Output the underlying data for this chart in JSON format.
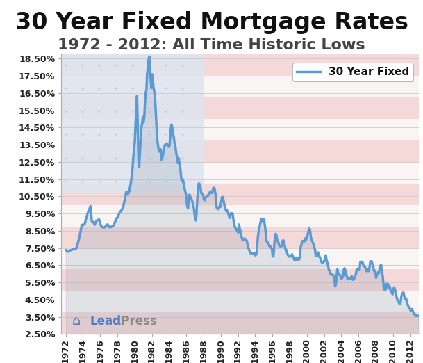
{
  "title": "30 Year Fixed Mortgage Rates",
  "subtitle": "1972 - 2012: All Time Historic Lows",
  "legend_label": "30 Year Fixed",
  "ylim": [
    2.5,
    18.75
  ],
  "yticks": [
    2.5,
    3.5,
    4.5,
    5.5,
    6.5,
    7.5,
    8.5,
    9.5,
    10.5,
    11.5,
    12.5,
    13.5,
    14.5,
    15.5,
    16.5,
    17.5,
    18.5
  ],
  "ylabel_ticks": [
    "2.50%",
    "3.50%",
    "4.50%",
    "5.50%",
    "6.50%",
    "7.50%",
    "8.50%",
    "9.50%",
    "10.50%",
    "11.50%",
    "12.50%",
    "13.50%",
    "14.50%",
    "15.50%",
    "16.50%",
    "17.50%",
    "18.50%"
  ],
  "xtick_years": [
    1972,
    1974,
    1976,
    1978,
    1980,
    1982,
    1984,
    1986,
    1988,
    1990,
    1992,
    1994,
    1996,
    1998,
    2000,
    2002,
    2004,
    2006,
    2008,
    2010,
    2012
  ],
  "xlim": [
    1971.5,
    2013.0
  ],
  "line_color": "#5b9bd5",
  "line_width": 2.5,
  "bg_color": "#ffffff",
  "plot_bg_color": "#ffffff",
  "grid_color": "#cccccc",
  "title_fontsize": 24,
  "subtitle_fontsize": 16,
  "tick_fontsize": 9,
  "stripe_red": "#f5d8d8",
  "stripe_white": "#faf5f5",
  "canton_color": "#dde4f0",
  "star_color": "#c5cfe0",
  "detailed_rates": [
    [
      1972.04,
      7.38
    ],
    [
      1972.21,
      7.28
    ],
    [
      1972.38,
      7.3
    ],
    [
      1972.54,
      7.37
    ],
    [
      1972.71,
      7.38
    ],
    [
      1972.88,
      7.44
    ],
    [
      1973.04,
      7.44
    ],
    [
      1973.21,
      7.46
    ],
    [
      1973.38,
      7.7
    ],
    [
      1973.54,
      8.02
    ],
    [
      1973.71,
      8.4
    ],
    [
      1973.88,
      8.84
    ],
    [
      1974.04,
      8.84
    ],
    [
      1974.21,
      8.9
    ],
    [
      1974.38,
      9.2
    ],
    [
      1974.54,
      9.5
    ],
    [
      1974.71,
      9.7
    ],
    [
      1974.88,
      9.93
    ],
    [
      1975.04,
      9.05
    ],
    [
      1975.21,
      9.0
    ],
    [
      1975.38,
      8.85
    ],
    [
      1975.54,
      9.05
    ],
    [
      1975.71,
      9.12
    ],
    [
      1975.88,
      9.16
    ],
    [
      1976.04,
      8.87
    ],
    [
      1976.21,
      8.72
    ],
    [
      1976.38,
      8.68
    ],
    [
      1976.54,
      8.7
    ],
    [
      1976.71,
      8.8
    ],
    [
      1976.88,
      8.87
    ],
    [
      1977.04,
      8.72
    ],
    [
      1977.21,
      8.7
    ],
    [
      1977.38,
      8.75
    ],
    [
      1977.54,
      8.8
    ],
    [
      1977.71,
      8.98
    ],
    [
      1977.88,
      9.18
    ],
    [
      1978.04,
      9.3
    ],
    [
      1978.21,
      9.5
    ],
    [
      1978.38,
      9.64
    ],
    [
      1978.54,
      9.73
    ],
    [
      1978.71,
      9.95
    ],
    [
      1978.88,
      10.35
    ],
    [
      1979.04,
      10.78
    ],
    [
      1979.21,
      10.6
    ],
    [
      1979.38,
      10.8
    ],
    [
      1979.54,
      11.2
    ],
    [
      1979.71,
      11.8
    ],
    [
      1979.88,
      12.9
    ],
    [
      1980.04,
      13.74
    ],
    [
      1980.13,
      14.88
    ],
    [
      1980.21,
      15.26
    ],
    [
      1980.29,
      16.35
    ],
    [
      1980.38,
      14.48
    ],
    [
      1980.46,
      12.66
    ],
    [
      1980.54,
      12.2
    ],
    [
      1980.63,
      13.1
    ],
    [
      1980.71,
      13.74
    ],
    [
      1980.79,
      14.5
    ],
    [
      1980.88,
      14.75
    ],
    [
      1980.96,
      15.12
    ],
    [
      1981.04,
      14.8
    ],
    [
      1981.13,
      15.1
    ],
    [
      1981.21,
      15.9
    ],
    [
      1981.29,
      16.52
    ],
    [
      1981.38,
      16.7
    ],
    [
      1981.46,
      17.58
    ],
    [
      1981.54,
      18.0
    ],
    [
      1981.63,
      18.45
    ],
    [
      1981.71,
      18.63
    ],
    [
      1981.79,
      17.8
    ],
    [
      1981.88,
      17.2
    ],
    [
      1981.96,
      16.8
    ],
    [
      1982.04,
      17.6
    ],
    [
      1982.13,
      17.2
    ],
    [
      1982.21,
      16.8
    ],
    [
      1982.29,
      16.6
    ],
    [
      1982.38,
      16.2
    ],
    [
      1982.46,
      15.46
    ],
    [
      1982.54,
      14.8
    ],
    [
      1982.63,
      13.84
    ],
    [
      1982.71,
      13.5
    ],
    [
      1982.79,
      13.24
    ],
    [
      1982.88,
      13.1
    ],
    [
      1982.96,
      13.24
    ],
    [
      1983.04,
      13.24
    ],
    [
      1983.13,
      12.63
    ],
    [
      1983.21,
      12.7
    ],
    [
      1983.29,
      12.9
    ],
    [
      1983.38,
      13.2
    ],
    [
      1983.46,
      13.4
    ],
    [
      1983.54,
      13.49
    ],
    [
      1983.63,
      13.51
    ],
    [
      1983.71,
      13.58
    ],
    [
      1983.79,
      13.5
    ],
    [
      1983.88,
      13.42
    ],
    [
      1983.96,
      13.38
    ],
    [
      1984.04,
      13.38
    ],
    [
      1984.13,
      13.88
    ],
    [
      1984.21,
      14.47
    ],
    [
      1984.29,
      14.67
    ],
    [
      1984.38,
      14.5
    ],
    [
      1984.46,
      14.14
    ],
    [
      1984.54,
      14.0
    ],
    [
      1984.63,
      13.64
    ],
    [
      1984.71,
      13.5
    ],
    [
      1984.79,
      13.2
    ],
    [
      1984.88,
      12.9
    ],
    [
      1984.96,
      12.7
    ],
    [
      1985.04,
      12.43
    ],
    [
      1985.13,
      12.72
    ],
    [
      1985.21,
      12.4
    ],
    [
      1985.29,
      12.22
    ],
    [
      1985.38,
      11.8
    ],
    [
      1985.46,
      11.4
    ],
    [
      1985.54,
      11.5
    ],
    [
      1985.63,
      11.45
    ],
    [
      1985.71,
      11.2
    ],
    [
      1985.79,
      10.98
    ],
    [
      1985.88,
      10.8
    ],
    [
      1985.96,
      10.65
    ],
    [
      1986.04,
      10.19
    ],
    [
      1986.13,
      9.9
    ],
    [
      1986.21,
      9.8
    ],
    [
      1986.29,
      10.4
    ],
    [
      1986.38,
      10.6
    ],
    [
      1986.46,
      10.5
    ],
    [
      1986.54,
      10.4
    ],
    [
      1986.63,
      10.32
    ],
    [
      1986.71,
      10.2
    ],
    [
      1986.79,
      10.1
    ],
    [
      1986.88,
      9.83
    ],
    [
      1986.96,
      9.5
    ],
    [
      1987.04,
      9.2
    ],
    [
      1987.13,
      9.1
    ],
    [
      1987.21,
      9.69
    ],
    [
      1987.29,
      10.4
    ],
    [
      1987.38,
      10.8
    ],
    [
      1987.46,
      11.26
    ],
    [
      1987.54,
      11.06
    ],
    [
      1987.63,
      11.2
    ],
    [
      1987.71,
      10.8
    ],
    [
      1987.79,
      10.65
    ],
    [
      1987.88,
      10.65
    ],
    [
      1987.96,
      10.6
    ],
    [
      1988.04,
      10.34
    ],
    [
      1988.13,
      10.27
    ],
    [
      1988.21,
      10.4
    ],
    [
      1988.29,
      10.46
    ],
    [
      1988.38,
      10.48
    ],
    [
      1988.46,
      10.48
    ],
    [
      1988.54,
      10.57
    ],
    [
      1988.63,
      10.65
    ],
    [
      1988.71,
      10.7
    ],
    [
      1988.79,
      10.8
    ],
    [
      1988.88,
      10.7
    ],
    [
      1988.96,
      10.7
    ],
    [
      1989.04,
      10.72
    ],
    [
      1989.13,
      10.97
    ],
    [
      1989.21,
      11.0
    ],
    [
      1989.29,
      10.93
    ],
    [
      1989.38,
      10.7
    ],
    [
      1989.46,
      10.24
    ],
    [
      1989.54,
      9.84
    ],
    [
      1989.63,
      9.8
    ],
    [
      1989.71,
      9.75
    ],
    [
      1989.79,
      9.88
    ],
    [
      1989.88,
      9.9
    ],
    [
      1989.96,
      9.88
    ],
    [
      1990.04,
      10.13
    ],
    [
      1990.13,
      10.38
    ],
    [
      1990.21,
      10.47
    ],
    [
      1990.29,
      10.38
    ],
    [
      1990.38,
      10.13
    ],
    [
      1990.46,
      9.94
    ],
    [
      1990.54,
      9.8
    ],
    [
      1990.63,
      9.65
    ],
    [
      1990.71,
      9.7
    ],
    [
      1990.79,
      9.65
    ],
    [
      1990.88,
      9.5
    ],
    [
      1990.96,
      9.38
    ],
    [
      1991.04,
      9.25
    ],
    [
      1991.13,
      9.47
    ],
    [
      1991.21,
      9.52
    ],
    [
      1991.29,
      9.52
    ],
    [
      1991.38,
      9.5
    ],
    [
      1991.46,
      9.21
    ],
    [
      1991.54,
      8.96
    ],
    [
      1991.63,
      8.75
    ],
    [
      1991.71,
      8.63
    ],
    [
      1991.79,
      8.63
    ],
    [
      1991.88,
      8.5
    ],
    [
      1991.96,
      8.5
    ],
    [
      1992.04,
      8.39
    ],
    [
      1992.13,
      8.86
    ],
    [
      1992.21,
      8.62
    ],
    [
      1992.29,
      8.5
    ],
    [
      1992.38,
      8.2
    ],
    [
      1992.46,
      8.1
    ],
    [
      1992.54,
      7.96
    ],
    [
      1992.63,
      8.0
    ],
    [
      1992.71,
      8.0
    ],
    [
      1992.79,
      8.05
    ],
    [
      1992.88,
      7.96
    ],
    [
      1992.96,
      7.96
    ],
    [
      1993.04,
      7.91
    ],
    [
      1993.13,
      7.69
    ],
    [
      1993.21,
      7.5
    ],
    [
      1993.29,
      7.41
    ],
    [
      1993.38,
      7.3
    ],
    [
      1993.46,
      7.2
    ],
    [
      1993.54,
      7.22
    ],
    [
      1993.63,
      7.18
    ],
    [
      1993.71,
      7.2
    ],
    [
      1993.79,
      7.18
    ],
    [
      1993.88,
      7.17
    ],
    [
      1993.96,
      7.17
    ],
    [
      1994.04,
      7.06
    ],
    [
      1994.13,
      7.15
    ],
    [
      1994.21,
      7.37
    ],
    [
      1994.29,
      8.0
    ],
    [
      1994.38,
      8.38
    ],
    [
      1994.46,
      8.6
    ],
    [
      1994.54,
      8.8
    ],
    [
      1994.63,
      9.0
    ],
    [
      1994.71,
      9.2
    ],
    [
      1994.79,
      9.07
    ],
    [
      1994.88,
      9.1
    ],
    [
      1994.96,
      9.17
    ],
    [
      1995.04,
      9.15
    ],
    [
      1995.13,
      8.8
    ],
    [
      1995.21,
      8.49
    ],
    [
      1995.29,
      7.96
    ],
    [
      1995.38,
      7.85
    ],
    [
      1995.46,
      7.84
    ],
    [
      1995.54,
      7.78
    ],
    [
      1995.63,
      7.64
    ],
    [
      1995.71,
      7.57
    ],
    [
      1995.79,
      7.59
    ],
    [
      1995.88,
      7.48
    ],
    [
      1995.96,
      7.43
    ],
    [
      1996.04,
      7.03
    ],
    [
      1996.13,
      7.0
    ],
    [
      1996.21,
      7.62
    ],
    [
      1996.29,
      8.0
    ],
    [
      1996.38,
      8.32
    ],
    [
      1996.46,
      8.25
    ],
    [
      1996.54,
      8.0
    ],
    [
      1996.63,
      7.9
    ],
    [
      1996.71,
      7.8
    ],
    [
      1996.79,
      7.64
    ],
    [
      1996.88,
      7.6
    ],
    [
      1996.96,
      7.6
    ],
    [
      1997.04,
      7.6
    ],
    [
      1997.13,
      7.65
    ],
    [
      1997.21,
      7.93
    ],
    [
      1997.29,
      7.94
    ],
    [
      1997.38,
      7.8
    ],
    [
      1997.46,
      7.56
    ],
    [
      1997.54,
      7.4
    ],
    [
      1997.63,
      7.38
    ],
    [
      1997.71,
      7.22
    ],
    [
      1997.79,
      7.1
    ],
    [
      1997.88,
      7.05
    ],
    [
      1997.96,
      7.0
    ],
    [
      1998.04,
      6.99
    ],
    [
      1998.13,
      7.06
    ],
    [
      1998.21,
      7.06
    ],
    [
      1998.29,
      7.13
    ],
    [
      1998.38,
      7.0
    ],
    [
      1998.46,
      6.94
    ],
    [
      1998.54,
      6.81
    ],
    [
      1998.63,
      6.9
    ],
    [
      1998.71,
      6.8
    ],
    [
      1998.79,
      6.89
    ],
    [
      1998.88,
      6.89
    ],
    [
      1998.96,
      6.94
    ],
    [
      1999.04,
      6.79
    ],
    [
      1999.13,
      6.87
    ],
    [
      1999.21,
      7.0
    ],
    [
      1999.29,
      7.55
    ],
    [
      1999.38,
      7.7
    ],
    [
      1999.46,
      7.9
    ],
    [
      1999.54,
      7.88
    ],
    [
      1999.63,
      7.88
    ],
    [
      1999.71,
      7.88
    ],
    [
      1999.79,
      8.05
    ],
    [
      1999.88,
      7.95
    ],
    [
      1999.96,
      8.05
    ],
    [
      2000.04,
      8.21
    ],
    [
      2000.13,
      8.33
    ],
    [
      2000.21,
      8.52
    ],
    [
      2000.29,
      8.64
    ],
    [
      2000.38,
      8.52
    ],
    [
      2000.46,
      8.15
    ],
    [
      2000.54,
      8.03
    ],
    [
      2000.63,
      7.9
    ],
    [
      2000.71,
      7.78
    ],
    [
      2000.79,
      7.72
    ],
    [
      2000.88,
      7.52
    ],
    [
      2000.96,
      7.38
    ],
    [
      2001.04,
      7.03
    ],
    [
      2001.13,
      7.06
    ],
    [
      2001.21,
      7.06
    ],
    [
      2001.29,
      7.24
    ],
    [
      2001.38,
      7.14
    ],
    [
      2001.46,
      7.0
    ],
    [
      2001.54,
      6.94
    ],
    [
      2001.63,
      6.8
    ],
    [
      2001.71,
      6.68
    ],
    [
      2001.79,
      6.62
    ],
    [
      2001.88,
      6.68
    ],
    [
      2001.96,
      6.72
    ],
    [
      2002.04,
      6.72
    ],
    [
      2002.13,
      6.87
    ],
    [
      2002.21,
      7.07
    ],
    [
      2002.29,
      6.78
    ],
    [
      2002.38,
      6.65
    ],
    [
      2002.46,
      6.52
    ],
    [
      2002.54,
      6.26
    ],
    [
      2002.63,
      6.18
    ],
    [
      2002.71,
      6.05
    ],
    [
      2002.79,
      5.96
    ],
    [
      2002.88,
      5.96
    ],
    [
      2002.96,
      5.96
    ],
    [
      2003.04,
      5.92
    ],
    [
      2003.13,
      5.84
    ],
    [
      2003.21,
      5.71
    ],
    [
      2003.29,
      5.27
    ],
    [
      2003.38,
      5.4
    ],
    [
      2003.46,
      5.9
    ],
    [
      2003.54,
      6.26
    ],
    [
      2003.63,
      6.07
    ],
    [
      2003.71,
      5.96
    ],
    [
      2003.79,
      5.96
    ],
    [
      2003.88,
      5.9
    ],
    [
      2003.96,
      5.88
    ],
    [
      2004.04,
      5.71
    ],
    [
      2004.13,
      5.78
    ],
    [
      2004.21,
      5.84
    ],
    [
      2004.29,
      6.21
    ],
    [
      2004.38,
      6.32
    ],
    [
      2004.46,
      6.22
    ],
    [
      2004.54,
      5.98
    ],
    [
      2004.63,
      5.89
    ],
    [
      2004.71,
      5.73
    ],
    [
      2004.79,
      5.68
    ],
    [
      2004.88,
      5.72
    ],
    [
      2004.96,
      5.75
    ],
    [
      2005.04,
      5.71
    ],
    [
      2005.13,
      5.77
    ],
    [
      2005.21,
      5.86
    ],
    [
      2005.29,
      5.72
    ],
    [
      2005.38,
      5.65
    ],
    [
      2005.46,
      5.68
    ],
    [
      2005.54,
      5.77
    ],
    [
      2005.63,
      5.9
    ],
    [
      2005.71,
      6.0
    ],
    [
      2005.79,
      6.26
    ],
    [
      2005.88,
      6.27
    ],
    [
      2005.96,
      6.27
    ],
    [
      2006.04,
      6.22
    ],
    [
      2006.13,
      6.25
    ],
    [
      2006.21,
      6.67
    ],
    [
      2006.29,
      6.68
    ],
    [
      2006.38,
      6.7
    ],
    [
      2006.46,
      6.68
    ],
    [
      2006.54,
      6.55
    ],
    [
      2006.63,
      6.43
    ],
    [
      2006.71,
      6.4
    ],
    [
      2006.79,
      6.36
    ],
    [
      2006.88,
      6.24
    ],
    [
      2006.96,
      6.14
    ],
    [
      2007.04,
      6.22
    ],
    [
      2007.13,
      6.28
    ],
    [
      2007.21,
      6.16
    ],
    [
      2007.29,
      6.4
    ],
    [
      2007.38,
      6.7
    ],
    [
      2007.46,
      6.73
    ],
    [
      2007.54,
      6.68
    ],
    [
      2007.63,
      6.57
    ],
    [
      2007.71,
      6.47
    ],
    [
      2007.79,
      6.2
    ],
    [
      2007.88,
      6.1
    ],
    [
      2007.96,
      6.17
    ],
    [
      2008.04,
      5.76
    ],
    [
      2008.13,
      5.92
    ],
    [
      2008.21,
      5.98
    ],
    [
      2008.29,
      6.09
    ],
    [
      2008.38,
      6.04
    ],
    [
      2008.46,
      6.32
    ],
    [
      2008.54,
      6.47
    ],
    [
      2008.63,
      6.52
    ],
    [
      2008.71,
      6.1
    ],
    [
      2008.79,
      5.94
    ],
    [
      2008.88,
      5.53
    ],
    [
      2008.96,
      5.14
    ],
    [
      2009.04,
      5.05
    ],
    [
      2009.13,
      5.07
    ],
    [
      2009.21,
      5.18
    ],
    [
      2009.29,
      5.42
    ],
    [
      2009.38,
      5.42
    ],
    [
      2009.46,
      5.35
    ],
    [
      2009.54,
      5.19
    ],
    [
      2009.63,
      5.25
    ],
    [
      2009.71,
      5.06
    ],
    [
      2009.79,
      4.95
    ],
    [
      2009.88,
      4.88
    ],
    [
      2009.96,
      4.81
    ],
    [
      2010.04,
      5.09
    ],
    [
      2010.13,
      5.21
    ],
    [
      2010.21,
      5.1
    ],
    [
      2010.29,
      5.0
    ],
    [
      2010.38,
      4.78
    ],
    [
      2010.46,
      4.57
    ],
    [
      2010.54,
      4.45
    ],
    [
      2010.63,
      4.36
    ],
    [
      2010.71,
      4.32
    ],
    [
      2010.79,
      4.24
    ],
    [
      2010.88,
      4.3
    ],
    [
      2010.96,
      4.63
    ],
    [
      2011.04,
      4.81
    ],
    [
      2011.13,
      4.87
    ],
    [
      2011.21,
      4.91
    ],
    [
      2011.29,
      4.75
    ],
    [
      2011.38,
      4.6
    ],
    [
      2011.46,
      4.51
    ],
    [
      2011.54,
      4.55
    ],
    [
      2011.63,
      4.27
    ],
    [
      2011.71,
      4.22
    ],
    [
      2011.79,
      4.12
    ],
    [
      2011.88,
      4.0
    ],
    [
      2011.96,
      3.98
    ],
    [
      2012.04,
      3.87
    ],
    [
      2012.13,
      3.87
    ],
    [
      2012.21,
      3.95
    ],
    [
      2012.29,
      3.84
    ],
    [
      2012.38,
      3.75
    ],
    [
      2012.46,
      3.66
    ],
    [
      2012.54,
      3.62
    ],
    [
      2012.63,
      3.55
    ],
    [
      2012.71,
      3.6
    ],
    [
      2012.79,
      3.55
    ],
    [
      2012.88,
      3.55
    ],
    [
      2012.96,
      3.55
    ]
  ]
}
